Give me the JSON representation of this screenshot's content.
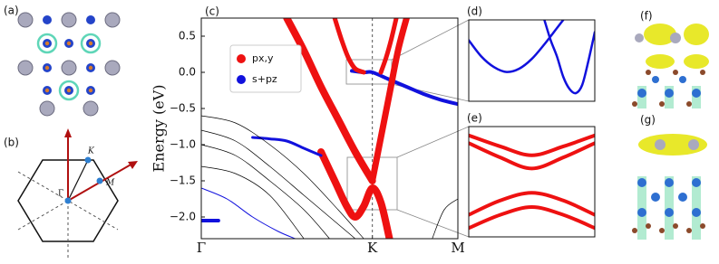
{
  "panels": {
    "a": {
      "label": "(a)"
    },
    "b": {
      "label": "(b)",
      "points": [
        "Γ",
        "K",
        "M"
      ]
    },
    "f": {
      "label": "(f)"
    },
    "g": {
      "label": "(g)"
    }
  },
  "chart_data": [
    {
      "type": "line",
      "panel": "(c)",
      "ylabel": "Energy (eV)",
      "legend": "upper left",
      "xlim": [
        0,
        1.5
      ],
      "xticks": [
        {
          "value": 0,
          "label": "Γ"
        },
        {
          "value": 1,
          "label": "K"
        },
        {
          "value": 1.5,
          "label": "M"
        }
      ],
      "ylim": [
        -2.3,
        0.75
      ],
      "yticks": [
        0.5,
        {
          "value": 0,
          "label": "0.0"
        },
        {
          "value": -0.5,
          "label": "−0.5"
        },
        {
          "value": -1,
          "label": "−1.0"
        },
        {
          "value": -1.5,
          "label": "−1.5"
        },
        {
          "value": -2,
          "label": "−2.0"
        }
      ],
      "series": [
        {
          "name": "px,y",
          "color": "#ee1111",
          "linewidth": 8,
          "x": [
            0.5,
            0.6,
            0.7,
            0.8,
            0.9,
            1.0
          ],
          "values": [
            0.75,
            0.3,
            -0.2,
            -0.65,
            -1.1,
            -1.5
          ]
        },
        {
          "name": "s+pz",
          "color": "#1111dd",
          "linewidth": 4,
          "x": [
            0.88,
            0.95,
            1.0,
            1.1,
            1.2,
            1.3,
            1.4,
            1.5
          ],
          "values": [
            0.02,
            0.0,
            0.0,
            -0.1,
            -0.2,
            -0.3,
            -0.38,
            -0.44
          ]
        },
        {
          "color": "#ee1111",
          "linewidth": 5,
          "x": [
            0.78,
            0.82,
            0.86,
            0.9,
            0.95
          ],
          "values": [
            0.75,
            0.45,
            0.2,
            0.05,
            0.0
          ]
        },
        {
          "color": "#ee1111",
          "linewidth": 5,
          "x": [
            1.05,
            1.08,
            1.11,
            1.14
          ],
          "values": [
            0.0,
            0.2,
            0.45,
            0.75
          ]
        },
        {
          "color": "#ee1111",
          "linewidth": 7,
          "x": [
            1.0,
            1.05,
            1.1,
            1.15,
            1.2
          ],
          "values": [
            -1.5,
            -0.9,
            -0.3,
            0.3,
            0.75
          ]
        },
        {
          "color": "#ee1111",
          "linewidth": 8,
          "x": [
            0.7,
            0.78,
            0.85,
            0.9,
            0.95,
            1.0,
            1.05,
            1.1
          ],
          "values": [
            -1.1,
            -1.5,
            -1.85,
            -2.0,
            -1.85,
            -1.6,
            -1.8,
            -2.3
          ]
        },
        {
          "color": "#1111dd",
          "linewidth": 3,
          "x": [
            0.3,
            0.4,
            0.5,
            0.6,
            0.7
          ],
          "values": [
            -0.9,
            -0.92,
            -0.95,
            -1.05,
            -1.15
          ]
        },
        {
          "color": "#1111dd",
          "linewidth": 4,
          "x": [
            0,
            0.1
          ],
          "values": [
            -2.05,
            -2.05
          ]
        },
        {
          "color": "#000000",
          "linewidth": 0.7,
          "x": [
            0,
            0.2,
            0.4,
            0.6,
            0.8,
            0.95
          ],
          "values": [
            -0.6,
            -0.7,
            -1.0,
            -1.4,
            -1.9,
            -2.3
          ]
        },
        {
          "color": "#000000",
          "linewidth": 0.7,
          "x": [
            0,
            0.2,
            0.4,
            0.6,
            0.8,
            0.9
          ],
          "values": [
            -0.8,
            -0.95,
            -1.3,
            -1.7,
            -2.1,
            -2.3
          ]
        },
        {
          "color": "#000000",
          "linewidth": 0.7,
          "x": [
            0,
            0.2,
            0.4,
            0.6,
            0.75
          ],
          "values": [
            -1.0,
            -1.15,
            -1.5,
            -1.9,
            -2.3
          ]
        },
        {
          "color": "#000000",
          "linewidth": 0.7,
          "x": [
            0,
            0.2,
            0.4,
            0.6
          ],
          "values": [
            -1.3,
            -1.4,
            -1.7,
            -2.3
          ]
        },
        {
          "color": "#1111dd",
          "linewidth": 1,
          "x": [
            0,
            0.15,
            0.3,
            0.45,
            0.55
          ],
          "values": [
            -1.6,
            -1.75,
            -2.0,
            -2.2,
            -2.3
          ]
        },
        {
          "color": "#000000",
          "linewidth": 0.7,
          "x": [
            1.35,
            1.42,
            1.5
          ],
          "values": [
            -2.3,
            -1.9,
            -1.75
          ]
        }
      ]
    },
    {
      "type": "line",
      "panel": "(d)",
      "xlim": [
        0,
        1
      ],
      "ylim": [
        0,
        1
      ],
      "series": [
        {
          "color": "#1111dd",
          "linewidth": 2.5,
          "x": [
            0.0,
            0.1,
            0.2,
            0.3,
            0.4,
            0.5,
            0.6,
            0.7,
            0.75
          ],
          "values": [
            0.75,
            0.55,
            0.42,
            0.36,
            0.4,
            0.52,
            0.7,
            0.9,
            1.0
          ]
        },
        {
          "color": "#1111dd",
          "linewidth": 2.5,
          "x": [
            0.6,
            0.65,
            0.7,
            0.75,
            0.8,
            0.85,
            0.9,
            0.95,
            1.0
          ],
          "values": [
            1.0,
            0.75,
            0.55,
            0.3,
            0.15,
            0.1,
            0.2,
            0.5,
            0.85
          ]
        }
      ]
    },
    {
      "type": "line",
      "panel": "(e)",
      "xlim": [
        0,
        1
      ],
      "ylim": [
        0,
        1
      ],
      "series": [
        {
          "color": "#ee1111",
          "linewidth": 4,
          "x": [
            0.0,
            0.25,
            0.5,
            0.75,
            1.0
          ],
          "values": [
            0.92,
            0.82,
            0.74,
            0.82,
            0.92
          ]
        },
        {
          "color": "#ee1111",
          "linewidth": 4,
          "x": [
            0.0,
            0.25,
            0.5,
            0.75,
            1.0
          ],
          "values": [
            0.85,
            0.72,
            0.62,
            0.72,
            0.85
          ]
        },
        {
          "color": "#ee1111",
          "linewidth": 4,
          "x": [
            0.0,
            0.25,
            0.5,
            0.75,
            1.0
          ],
          "values": [
            0.2,
            0.33,
            0.4,
            0.33,
            0.2
          ]
        },
        {
          "color": "#ee1111",
          "linewidth": 4,
          "x": [
            0.0,
            0.25,
            0.5,
            0.75,
            1.0
          ],
          "values": [
            0.08,
            0.2,
            0.27,
            0.2,
            0.08
          ]
        }
      ]
    }
  ]
}
